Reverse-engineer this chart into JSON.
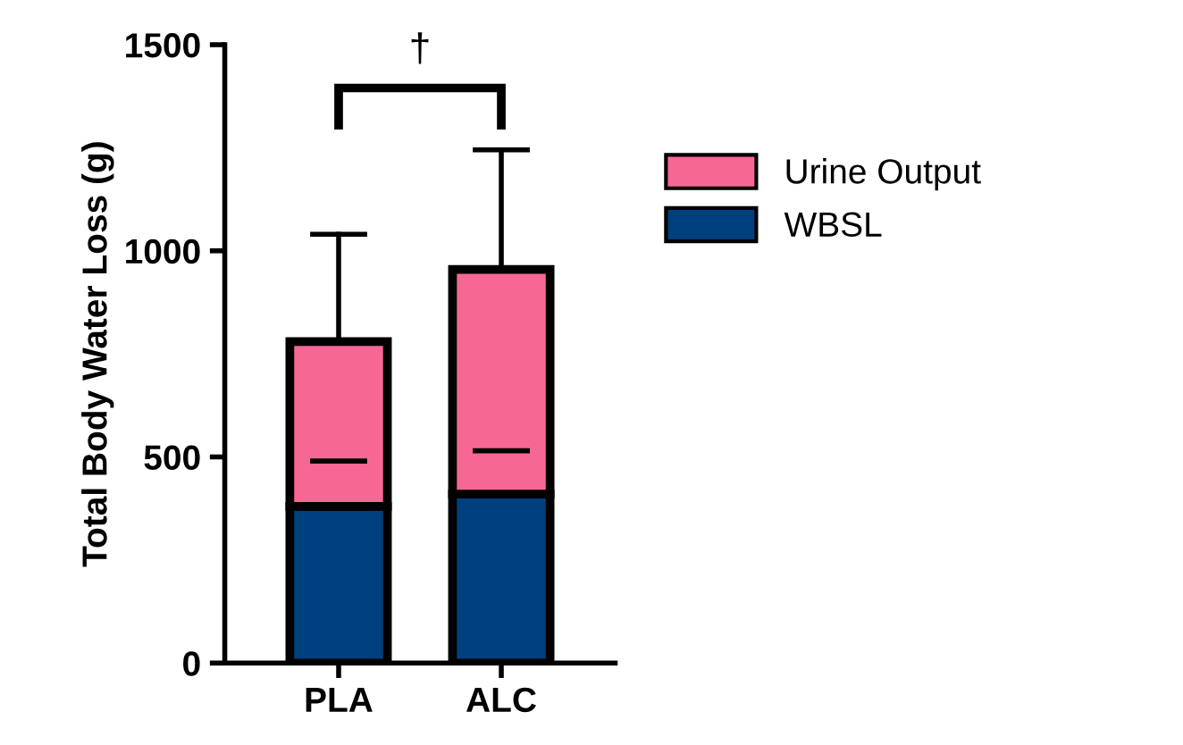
{
  "chart_data": {
    "type": "bar",
    "stacked": true,
    "ylabel": "Total Body Water Loss (g)",
    "categories": [
      "PLA",
      "ALC"
    ],
    "series": [
      {
        "name": "WBSL",
        "color": "#003f7d",
        "values": [
          380,
          410
        ],
        "errors": [
          [
            380,
            490
          ],
          [
            410,
            515
          ]
        ]
      },
      {
        "name": "Urine Output",
        "color": "#f76794",
        "values": [
          400,
          545
        ],
        "errors": [
          [
            780,
            1040
          ],
          [
            955,
            1245
          ]
        ]
      }
    ],
    "ylim": [
      0,
      1500
    ],
    "yticks": [
      0,
      500,
      1000,
      1500
    ],
    "annotations": [
      "†"
    ],
    "grid": false,
    "legend": "right"
  }
}
